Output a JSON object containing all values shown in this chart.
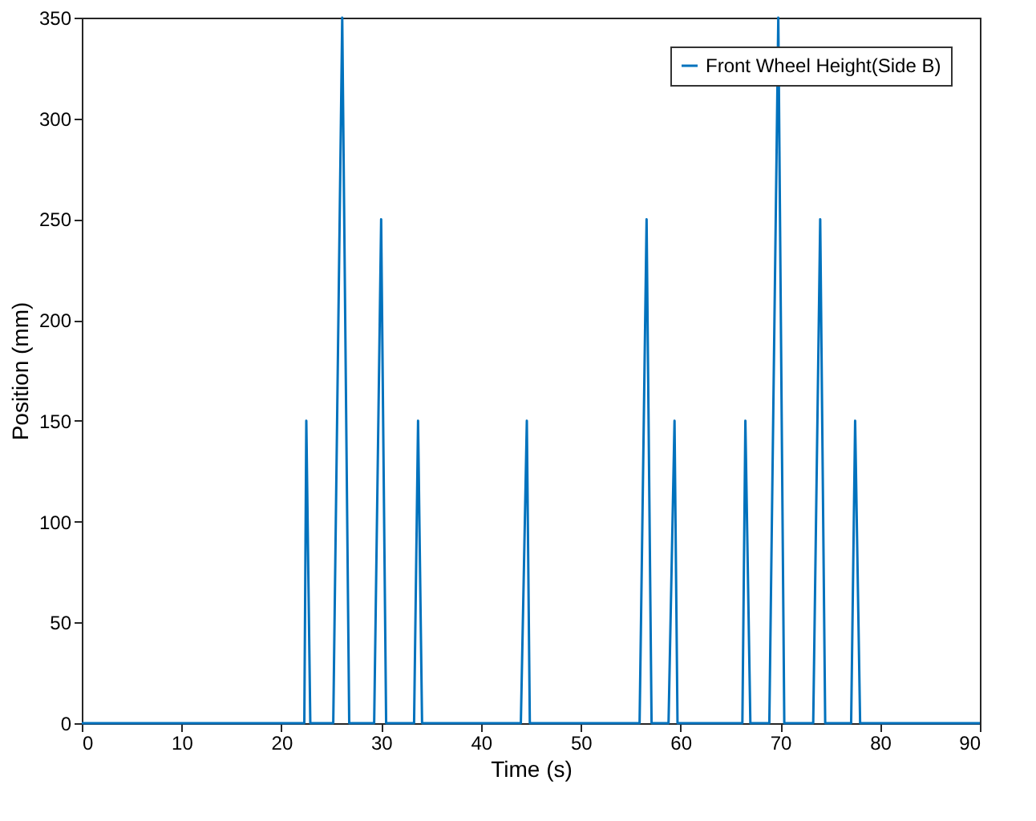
{
  "chart_data": {
    "type": "line",
    "xlabel": "Time (s)",
    "ylabel": "Position (mm)",
    "xlim": [
      0,
      90
    ],
    "xticks": [
      0,
      10,
      20,
      30,
      40,
      50,
      60,
      70,
      80,
      90
    ],
    "ylim": [
      0,
      350
    ],
    "yticks": [
      0,
      50,
      100,
      150,
      200,
      250,
      300,
      350
    ],
    "grid": false,
    "legend": "top right",
    "marker": "none",
    "line_style": "solid",
    "series": [
      {
        "name": "Front Wheel Height(Side B)",
        "color": "#0072bd",
        "x": [
          0,
          22.3,
          22.5,
          22.9,
          25.2,
          26.1,
          26.8,
          29.3,
          30.0,
          30.5,
          33.3,
          33.7,
          34.1,
          44.0,
          44.6,
          44.9,
          55.9,
          56.6,
          57.1,
          58.8,
          59.4,
          59.7,
          66.2,
          66.5,
          67.0,
          68.9,
          69.8,
          70.4,
          73.3,
          74.0,
          74.5,
          77.1,
          77.5,
          78.0,
          90
        ],
        "values": [
          0,
          0,
          150,
          0,
          0,
          350,
          0,
          0,
          250,
          0,
          0,
          150,
          0,
          0,
          150,
          0,
          0,
          250,
          0,
          0,
          150,
          0,
          0,
          150,
          0,
          0,
          350,
          0,
          0,
          250,
          0,
          0,
          150,
          0,
          0
        ]
      }
    ]
  }
}
